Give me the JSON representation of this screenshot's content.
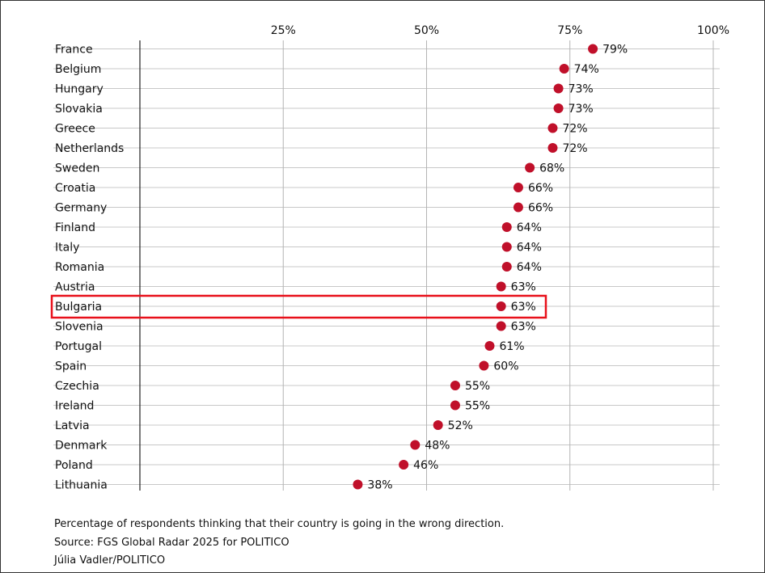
{
  "chart_data": {
    "type": "scatter",
    "categories": [
      "France",
      "Belgium",
      "Hungary",
      "Slovakia",
      "Greece",
      "Netherlands",
      "Sweden",
      "Croatia",
      "Germany",
      "Finland",
      "Italy",
      "Romania",
      "Austria",
      "Bulgaria",
      "Slovenia",
      "Portugal",
      "Spain",
      "Czechia",
      "Ireland",
      "Latvia",
      "Denmark",
      "Poland",
      "Lithuania"
    ],
    "values": [
      79,
      74,
      73,
      73,
      72,
      72,
      68,
      66,
      66,
      64,
      64,
      64,
      63,
      63,
      63,
      61,
      60,
      55,
      55,
      52,
      48,
      46,
      38
    ],
    "data_labels": [
      "79%",
      "74%",
      "73%",
      "73%",
      "72%",
      "72%",
      "68%",
      "66%",
      "66%",
      "64%",
      "64%",
      "64%",
      "63%",
      "63%",
      "63%",
      "61%",
      "60%",
      "55%",
      "55%",
      "52%",
      "48%",
      "46%",
      "38%"
    ],
    "x_ticks": [
      25,
      50,
      75,
      100
    ],
    "x_tick_labels": [
      "25%",
      "50%",
      "75%",
      "100%"
    ],
    "xlim": [
      0,
      100
    ],
    "grid": true,
    "highlight": "Bulgaria",
    "marker_color": "#c0102a",
    "highlight_color": "#e8101a"
  },
  "notes": {
    "description": "Percentage of respondents thinking that their country is going in the wrong direction.",
    "source": "Source: FGS Global Radar 2025 for POLITICO",
    "credit": "Júlia Vadler/POLITICO"
  }
}
